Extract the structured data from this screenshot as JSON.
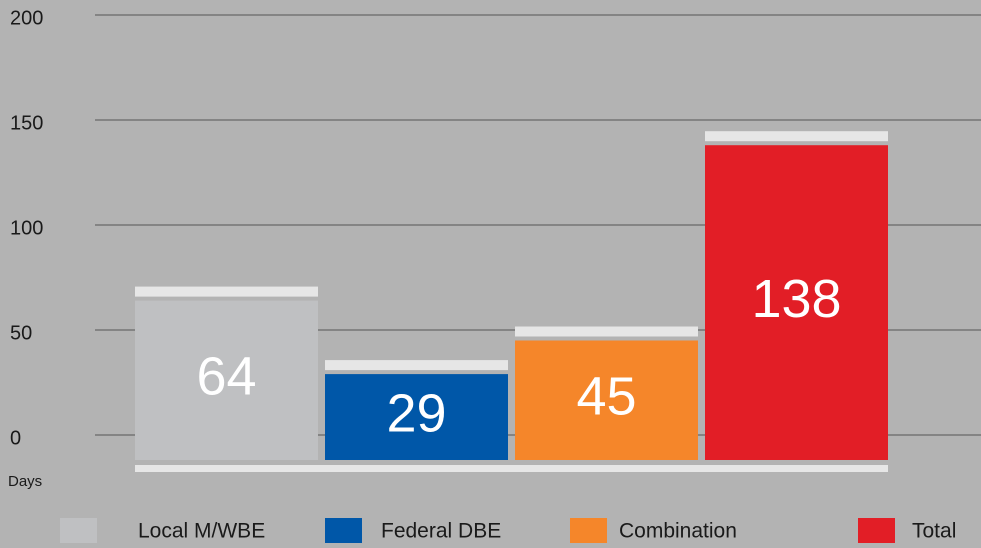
{
  "chart_data": {
    "type": "bar",
    "y_axis_label": "Days",
    "categories": [
      "Local M/WBE",
      "Federal DBE",
      "Combination",
      "Total"
    ],
    "values": [
      64,
      29,
      45,
      138
    ],
    "colors": [
      "#bfc0c2",
      "#0057a8",
      "#f5862a",
      "#e21e26"
    ],
    "ylim": [
      0,
      200
    ],
    "yticks": [
      0,
      50,
      100,
      150,
      200
    ],
    "grid": true,
    "legend": "bottom"
  }
}
